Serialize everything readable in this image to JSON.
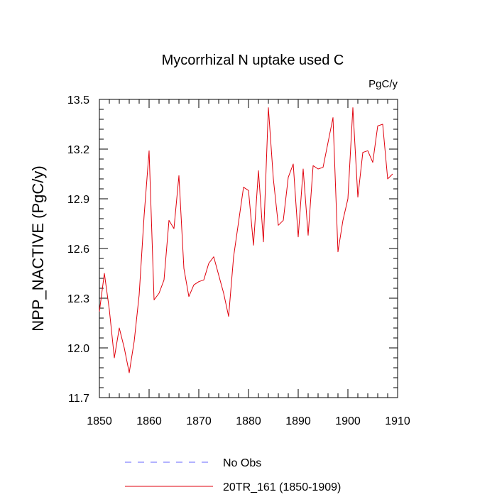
{
  "chart_data": {
    "type": "line",
    "title": "Mycorrhizal N uptake used C",
    "units": "PgC/y",
    "xlabel": "",
    "ylabel": "NPP_NACTIVE  (PgC/y)",
    "xlim": [
      1850,
      1910
    ],
    "ylim": [
      11.7,
      13.5
    ],
    "x_ticks": [
      1850,
      1860,
      1870,
      1880,
      1890,
      1900,
      1910
    ],
    "y_ticks": [
      11.7,
      12.0,
      12.3,
      12.6,
      12.9,
      13.2,
      13.5
    ],
    "x_tick_labels": [
      "1850",
      "1860",
      "1870",
      "1880",
      "1890",
      "1900",
      "1910"
    ],
    "y_tick_labels": [
      "11.7",
      "12.0",
      "12.3",
      "12.6",
      "12.9",
      "13.2",
      "13.5"
    ],
    "legend": [
      {
        "name": "No Obs",
        "color": "#6666ff",
        "style": "dashed"
      },
      {
        "name": "20TR_161 (1850-1909)",
        "color": "#e0000c",
        "style": "solid"
      }
    ],
    "series": [
      {
        "name": "20TR_161 (1850-1909)",
        "color": "#e0000c",
        "x": [
          1850,
          1851,
          1852,
          1853,
          1854,
          1855,
          1856,
          1857,
          1858,
          1859,
          1860,
          1861,
          1862,
          1863,
          1864,
          1865,
          1866,
          1867,
          1868,
          1869,
          1870,
          1871,
          1872,
          1873,
          1874,
          1875,
          1876,
          1877,
          1878,
          1879,
          1880,
          1881,
          1882,
          1883,
          1884,
          1885,
          1886,
          1887,
          1888,
          1889,
          1890,
          1891,
          1892,
          1893,
          1894,
          1895,
          1896,
          1897,
          1898,
          1899,
          1900,
          1901,
          1902,
          1903,
          1904,
          1905,
          1906,
          1907,
          1908,
          1909
        ],
        "values": [
          12.22,
          12.45,
          12.23,
          11.94,
          12.12,
          12.0,
          11.85,
          12.04,
          12.32,
          12.8,
          13.19,
          12.29,
          12.33,
          12.41,
          12.77,
          12.72,
          13.04,
          12.48,
          12.31,
          12.38,
          12.4,
          12.41,
          12.51,
          12.55,
          12.44,
          12.33,
          12.19,
          12.55,
          12.76,
          12.97,
          12.95,
          12.62,
          13.07,
          12.64,
          13.45,
          13.02,
          12.74,
          12.77,
          13.03,
          13.11,
          12.67,
          13.08,
          12.68,
          13.1,
          13.08,
          13.09,
          13.24,
          13.39,
          12.58,
          12.77,
          12.9,
          13.45,
          12.91,
          13.18,
          13.19,
          13.12,
          13.34,
          13.35,
          13.02,
          13.05
        ]
      }
    ]
  }
}
